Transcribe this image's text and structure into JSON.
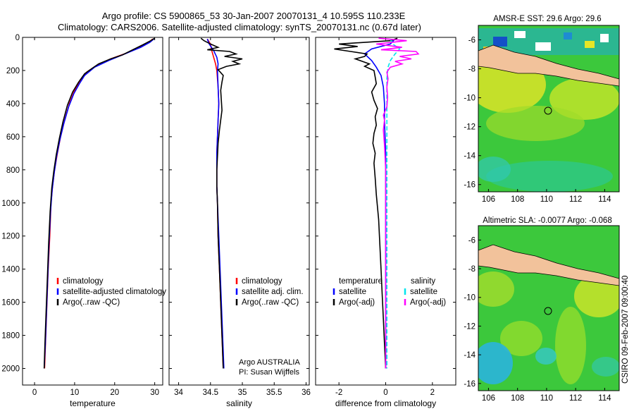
{
  "title_line1": "Argo profile: CS 5900865_53 30-Jan-2007 20070131_4 10.595S 110.233E",
  "title_line2": "Climatology: CARS2006. Satellite-adjusted climatology: synTS_20070131.nc (0.67d later)",
  "credit": "CSIRO 09-Feb-2007 09:00:40",
  "colors": {
    "climatology": "#ff0000",
    "satellite": "#0000ff",
    "argo": "#000000",
    "cyan": "#00e5ee",
    "magenta": "#ff00ff",
    "land": "#f2c29b"
  },
  "chart_data": [
    {
      "type": "line",
      "name": "temperature-profile",
      "xlabel": "temperature",
      "ylim": [
        0,
        2100
      ],
      "xlim": [
        -3,
        32
      ],
      "xticks": [
        0,
        10,
        20,
        30
      ],
      "yticks": [
        0,
        200,
        400,
        600,
        800,
        1000,
        1200,
        1400,
        1600,
        1800,
        2000
      ],
      "legend": [
        "climatology",
        "satellite-adjusted climatology",
        "Argo(..raw -QC)"
      ],
      "series": [
        {
          "name": "climatology",
          "color": "#ff0000",
          "points": [
            [
              29.5,
              10
            ],
            [
              28.5,
              30
            ],
            [
              26,
              60
            ],
            [
              23,
              95
            ],
            [
              19,
              130
            ],
            [
              15.5,
              170
            ],
            [
              13,
              210
            ],
            [
              11.5,
              260
            ],
            [
              10,
              320
            ],
            [
              8.7,
              400
            ],
            [
              7.5,
              500
            ],
            [
              6.5,
              600
            ],
            [
              5.7,
              700
            ],
            [
              5,
              800
            ],
            [
              4.5,
              900
            ],
            [
              4.1,
              1000
            ],
            [
              3.8,
              1200
            ],
            [
              3.4,
              1400
            ],
            [
              3.1,
              1600
            ],
            [
              2.8,
              1800
            ],
            [
              2.5,
              2000
            ]
          ]
        },
        {
          "name": "satellite",
          "color": "#0000ff",
          "points": [
            [
              29.8,
              10
            ],
            [
              28.8,
              30
            ],
            [
              26.5,
              60
            ],
            [
              22.5,
              100
            ],
            [
              18.5,
              140
            ],
            [
              15,
              180
            ],
            [
              12.5,
              230
            ],
            [
              11.2,
              280
            ],
            [
              9.8,
              340
            ],
            [
              8.5,
              420
            ],
            [
              7.3,
              520
            ],
            [
              6.3,
              620
            ],
            [
              5.5,
              720
            ],
            [
              4.9,
              820
            ],
            [
              4.4,
              920
            ],
            [
              4,
              1050
            ],
            [
              3.6,
              1250
            ],
            [
              3.3,
              1450
            ],
            [
              3,
              1650
            ],
            [
              2.7,
              1850
            ],
            [
              2.4,
              2000
            ]
          ]
        },
        {
          "name": "argo",
          "color": "#000000",
          "points": [
            [
              30,
              5
            ],
            [
              29,
              20
            ],
            [
              27,
              45
            ],
            [
              24.5,
              75
            ],
            [
              22,
              105
            ],
            [
              19,
              130
            ],
            [
              16,
              160
            ],
            [
              14.5,
              185
            ],
            [
              12.5,
              220
            ],
            [
              11,
              270
            ],
            [
              9.5,
              330
            ],
            [
              8.2,
              410
            ],
            [
              7.1,
              510
            ],
            [
              6.2,
              610
            ],
            [
              5.4,
              710
            ],
            [
              4.8,
              810
            ],
            [
              4.3,
              910
            ],
            [
              3.9,
              1050
            ],
            [
              3.5,
              1250
            ],
            [
              3.2,
              1450
            ],
            [
              2.9,
              1650
            ],
            [
              2.6,
              1850
            ],
            [
              2.4,
              2000
            ]
          ]
        }
      ]
    },
    {
      "type": "line",
      "name": "salinity-profile",
      "xlabel": "salinity",
      "ylim": [
        0,
        2100
      ],
      "xlim": [
        33.85,
        36.05
      ],
      "xticks": [
        34,
        34.5,
        35,
        35.5,
        36
      ],
      "legend": [
        "climatology",
        "satellite adj. clim.",
        "Argo(..raw -QC)"
      ],
      "annotation_line1": "Argo AUSTRALIA",
      "annotation_line2": "PI: Susan Wijffels",
      "series": [
        {
          "name": "climatology",
          "color": "#ff0000",
          "points": [
            [
              34.45,
              10
            ],
            [
              34.5,
              40
            ],
            [
              34.52,
              80
            ],
            [
              34.55,
              120
            ],
            [
              34.58,
              160
            ],
            [
              34.6,
              200
            ],
            [
              34.62,
              300
            ],
            [
              34.63,
              400
            ],
            [
              34.62,
              500
            ],
            [
              34.61,
              600
            ],
            [
              34.6,
              700
            ],
            [
              34.6,
              800
            ],
            [
              34.6,
              900
            ],
            [
              34.61,
              1000
            ],
            [
              34.62,
              1200
            ],
            [
              34.64,
              1400
            ],
            [
              34.66,
              1600
            ],
            [
              34.68,
              1800
            ],
            [
              34.7,
              2000
            ]
          ]
        },
        {
          "name": "satellite",
          "color": "#0000ff",
          "points": [
            [
              34.45,
              10
            ],
            [
              34.48,
              40
            ],
            [
              34.55,
              80
            ],
            [
              34.6,
              120
            ],
            [
              34.62,
              160
            ],
            [
              34.61,
              200
            ],
            [
              34.62,
              300
            ],
            [
              34.63,
              400
            ],
            [
              34.62,
              500
            ],
            [
              34.61,
              600
            ],
            [
              34.6,
              700
            ],
            [
              34.6,
              800
            ],
            [
              34.6,
              900
            ],
            [
              34.61,
              1000
            ],
            [
              34.63,
              1200
            ],
            [
              34.65,
              1400
            ],
            [
              34.67,
              1600
            ],
            [
              34.69,
              1800
            ],
            [
              34.71,
              2000
            ]
          ]
        },
        {
          "name": "argo",
          "color": "#000000",
          "points": [
            [
              34.35,
              5
            ],
            [
              34.4,
              20
            ],
            [
              34.5,
              40
            ],
            [
              34.62,
              60
            ],
            [
              34.45,
              75
            ],
            [
              34.8,
              85
            ],
            [
              34.9,
              100
            ],
            [
              34.72,
              115
            ],
            [
              35.0,
              130
            ],
            [
              34.85,
              145
            ],
            [
              34.95,
              160
            ],
            [
              34.75,
              175
            ],
            [
              34.62,
              195
            ],
            [
              34.7,
              230
            ],
            [
              34.68,
              270
            ],
            [
              34.66,
              320
            ],
            [
              34.67,
              380
            ],
            [
              34.68,
              440
            ],
            [
              34.66,
              500
            ],
            [
              34.64,
              560
            ],
            [
              34.62,
              640
            ],
            [
              34.61,
              720
            ],
            [
              34.6,
              800
            ],
            [
              34.6,
              900
            ],
            [
              34.61,
              1000
            ],
            [
              34.62,
              1200
            ],
            [
              34.64,
              1400
            ],
            [
              34.66,
              1600
            ],
            [
              34.68,
              1800
            ],
            [
              34.7,
              2000
            ]
          ]
        }
      ]
    },
    {
      "type": "line",
      "name": "difference-profile",
      "xlabel": "difference from climatology",
      "ylim": [
        0,
        2100
      ],
      "xlim": [
        -3,
        3
      ],
      "xticks": [
        -2,
        0,
        2
      ],
      "legend_heading_left": "temperature",
      "legend_heading_right": "salinity",
      "legend_left": [
        "satellite",
        "Argo(-adj)"
      ],
      "legend_right": [
        "satellite",
        "Argo(-adj)"
      ],
      "series": [
        {
          "name": "temp-satellite",
          "color": "#0000ff",
          "points": [
            [
              0.4,
              10
            ],
            [
              0.2,
              40
            ],
            [
              -0.6,
              70
            ],
            [
              -0.9,
              100
            ],
            [
              -0.6,
              140
            ],
            [
              -0.4,
              180
            ],
            [
              -0.2,
              230
            ],
            [
              -0.1,
              300
            ],
            [
              -0.05,
              400
            ],
            [
              -0.05,
              500
            ],
            [
              0,
              700
            ],
            [
              0,
              1000
            ],
            [
              0,
              1400
            ],
            [
              0,
              1800
            ],
            [
              0,
              2000
            ]
          ]
        },
        {
          "name": "temp-argo",
          "color": "#000000",
          "points": [
            [
              0.5,
              5
            ],
            [
              0.2,
              20
            ],
            [
              -2,
              40
            ],
            [
              -1.2,
              55
            ],
            [
              -2.2,
              70
            ],
            [
              -1.5,
              85
            ],
            [
              -0.8,
              100
            ],
            [
              -0.9,
              115
            ],
            [
              -1.3,
              130
            ],
            [
              -1.0,
              145
            ],
            [
              -0.7,
              160
            ],
            [
              -0.9,
              175
            ],
            [
              -0.5,
              200
            ],
            [
              -0.45,
              240
            ],
            [
              -0.4,
              280
            ],
            [
              -0.6,
              330
            ],
            [
              -0.5,
              380
            ],
            [
              -0.35,
              430
            ],
            [
              -0.45,
              480
            ],
            [
              -0.4,
              530
            ],
            [
              -0.5,
              580
            ],
            [
              -0.55,
              640
            ],
            [
              -0.45,
              700
            ],
            [
              -0.5,
              760
            ],
            [
              -0.45,
              850
            ],
            [
              -0.4,
              950
            ],
            [
              -0.3,
              1100
            ],
            [
              -0.25,
              1250
            ],
            [
              -0.2,
              1400
            ],
            [
              -0.15,
              1550
            ],
            [
              -0.1,
              1700
            ],
            [
              -0.05,
              1850
            ],
            [
              0,
              2000
            ]
          ]
        },
        {
          "name": "sal-satellite",
          "color": "#00e5ee",
          "points": [
            [
              0.2,
              10
            ],
            [
              0.3,
              40
            ],
            [
              0.6,
              70
            ],
            [
              0.4,
              100
            ],
            [
              0.2,
              140
            ],
            [
              0.1,
              180
            ],
            [
              0.05,
              250
            ],
            [
              0.05,
              350
            ],
            [
              0.05,
              500
            ],
            [
              0.05,
              700
            ],
            [
              0.05,
              1000
            ],
            [
              0.05,
              1400
            ],
            [
              0.05,
              1800
            ],
            [
              0.05,
              2000
            ]
          ]
        },
        {
          "name": "sal-argo",
          "color": "#ff00ff",
          "points": [
            [
              -0.3,
              5
            ],
            [
              0.9,
              20
            ],
            [
              -0.4,
              40
            ],
            [
              0.7,
              60
            ],
            [
              -0.2,
              75
            ],
            [
              1.3,
              85
            ],
            [
              1.4,
              100
            ],
            [
              0.6,
              115
            ],
            [
              1.1,
              130
            ],
            [
              0.4,
              145
            ],
            [
              0.7,
              160
            ],
            [
              0.2,
              180
            ],
            [
              0.05,
              210
            ],
            [
              0.1,
              250
            ],
            [
              0.05,
              300
            ],
            [
              0.08,
              360
            ],
            [
              0.05,
              420
            ],
            [
              -0.1,
              470
            ],
            [
              -0.05,
              500
            ],
            [
              -0.1,
              560
            ],
            [
              -0.05,
              650
            ],
            [
              0,
              800
            ],
            [
              0,
              1000
            ],
            [
              0,
              1400
            ],
            [
              0,
              1800
            ],
            [
              0,
              2000
            ]
          ]
        }
      ]
    },
    {
      "type": "heatmap",
      "name": "amsr-sst-map",
      "title": "AMSR-E SST: 29.6  Argo: 29.6",
      "xlim": [
        105.3,
        115
      ],
      "ylim": [
        -16.5,
        -5
      ],
      "xticks": [
        106,
        108,
        110,
        112,
        114
      ],
      "yticks": [
        -6,
        -8,
        -10,
        -12,
        -14,
        -16
      ],
      "marker": {
        "lon": 110.233,
        "lat": -10.595
      }
    },
    {
      "type": "heatmap",
      "name": "altimetric-sla-map",
      "title": "Altimetric SLA: -0.0077  Argo: -0.068",
      "xlim": [
        105.3,
        115
      ],
      "ylim": [
        -16.5,
        -5
      ],
      "xticks": [
        106,
        108,
        110,
        112,
        114
      ],
      "yticks": [
        -6,
        -8,
        -10,
        -12,
        -14,
        -16
      ],
      "marker": {
        "lon": 110.233,
        "lat": -10.595
      }
    }
  ]
}
